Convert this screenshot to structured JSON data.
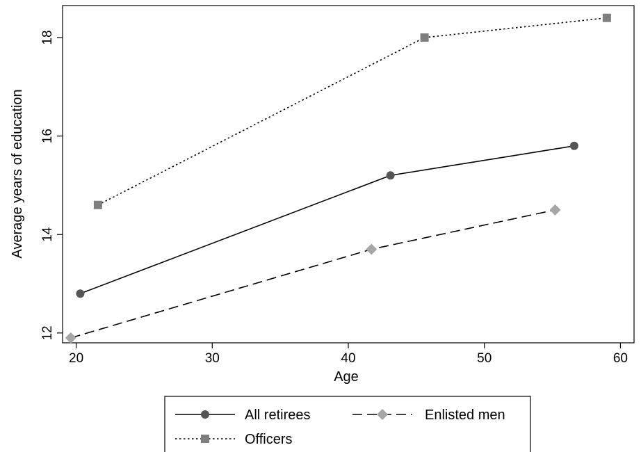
{
  "chart_data": {
    "type": "line",
    "title": "",
    "xlabel": "Age",
    "ylabel": "Average years of education",
    "xlim": [
      19,
      61
    ],
    "ylim": [
      11.8,
      18.65
    ],
    "xticks": [
      20,
      30,
      40,
      50,
      60
    ],
    "yticks": [
      12,
      14,
      16,
      18
    ],
    "grid": false,
    "legend_position": "bottom",
    "series": [
      {
        "name": "All retirees",
        "x": [
          20.3,
          43.1,
          56.6
        ],
        "y": [
          12.8,
          15.2,
          15.8
        ],
        "marker": "circle",
        "line_style": "solid",
        "line_color": "#000000",
        "marker_color": "#555555"
      },
      {
        "name": "Enlisted men",
        "x": [
          19.6,
          41.7,
          55.2
        ],
        "y": [
          11.9,
          13.7,
          14.5
        ],
        "marker": "diamond",
        "line_style": "dashed",
        "line_color": "#000000",
        "marker_color": "#a6a6a6"
      },
      {
        "name": "Officers",
        "x": [
          21.6,
          45.6,
          59.0
        ],
        "y": [
          14.6,
          18.0,
          18.4
        ],
        "marker": "square",
        "line_style": "dotted",
        "line_color": "#000000",
        "marker_color": "#7f7f7f"
      }
    ]
  }
}
